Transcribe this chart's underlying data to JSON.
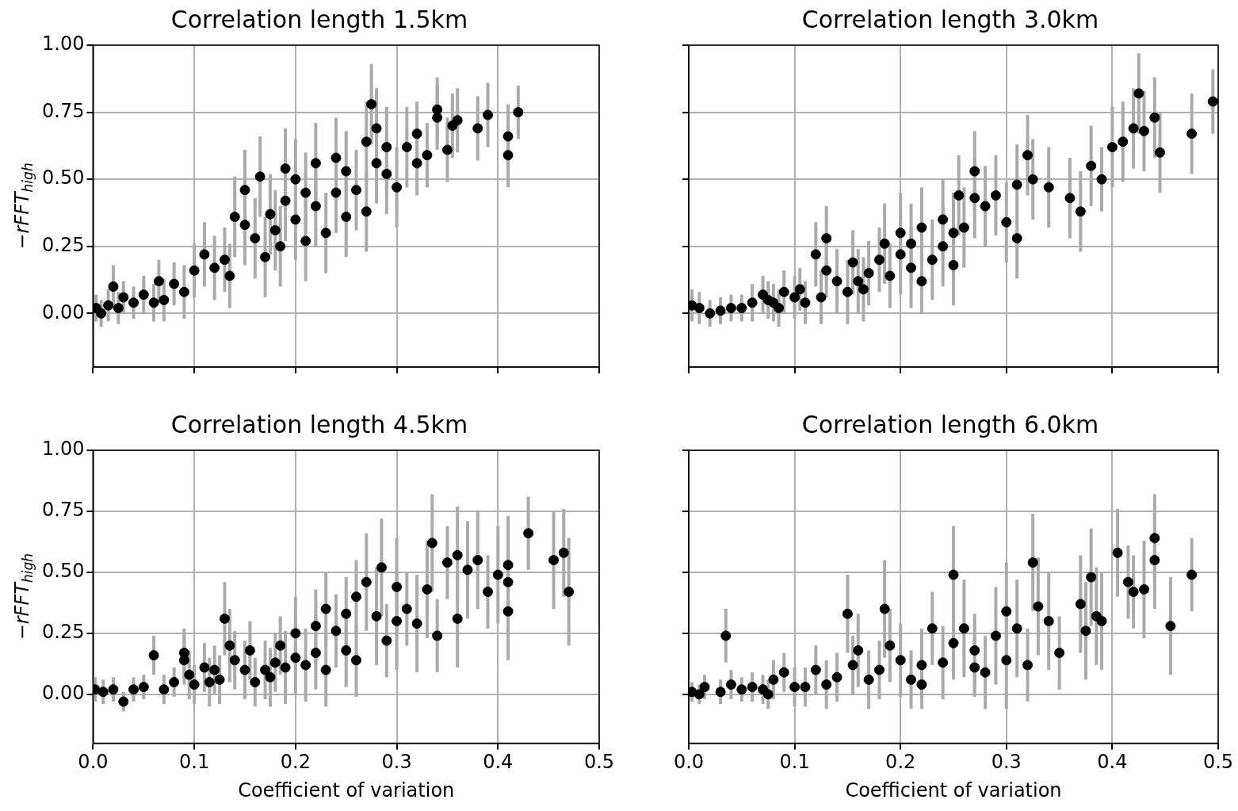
{
  "chart_data": [
    {
      "type": "scatter",
      "title": "Correlation length 1.5km",
      "ylabel": "−rFFT$_{high}$",
      "color": "#000000",
      "marker": "circle",
      "grid": true,
      "tick_labels": "y",
      "xlim": [
        0,
        0.5
      ],
      "ylim": [
        -0.2,
        1.0
      ],
      "xticks": [
        0,
        0.1,
        0.2,
        0.3,
        0.4,
        0.5
      ],
      "yticks": [
        {
          "value": 0,
          "label": "0.00"
        },
        {
          "value": 0.25,
          "label": "0.25"
        },
        {
          "value": 0.5,
          "label": "0.50"
        },
        {
          "value": 0.75,
          "label": "0.75"
        },
        {
          "value": 1,
          "label": "1.00"
        }
      ],
      "x": [
        0.003,
        0.008,
        0.015,
        0.02,
        0.025,
        0.03,
        0.04,
        0.05,
        0.06,
        0.065,
        0.07,
        0.08,
        0.09,
        0.1,
        0.11,
        0.12,
        0.13,
        0.135,
        0.14,
        0.15,
        0.15,
        0.16,
        0.165,
        0.17,
        0.175,
        0.18,
        0.185,
        0.19,
        0.19,
        0.2,
        0.2,
        0.21,
        0.21,
        0.22,
        0.22,
        0.23,
        0.24,
        0.24,
        0.25,
        0.25,
        0.26,
        0.27,
        0.27,
        0.28,
        0.28,
        0.29,
        0.29,
        0.3,
        0.31,
        0.32,
        0.32,
        0.33,
        0.34,
        0.35,
        0.355,
        0.36,
        0.38,
        0.39,
        0.41,
        0.41,
        0.42,
        0.275,
        0.34
      ],
      "values": [
        0.02,
        0.0,
        0.03,
        0.1,
        0.02,
        0.06,
        0.04,
        0.07,
        0.04,
        0.12,
        0.05,
        0.11,
        0.08,
        0.16,
        0.22,
        0.17,
        0.2,
        0.14,
        0.36,
        0.33,
        0.46,
        0.28,
        0.51,
        0.21,
        0.37,
        0.31,
        0.25,
        0.42,
        0.54,
        0.35,
        0.5,
        0.27,
        0.45,
        0.56,
        0.4,
        0.3,
        0.58,
        0.45,
        0.36,
        0.53,
        0.46,
        0.64,
        0.38,
        0.56,
        0.69,
        0.52,
        0.62,
        0.47,
        0.62,
        0.56,
        0.67,
        0.59,
        0.73,
        0.61,
        0.7,
        0.72,
        0.69,
        0.74,
        0.66,
        0.59,
        0.75,
        0.78,
        0.76
      ],
      "errors": [
        0.05,
        0.05,
        0.06,
        0.08,
        0.06,
        0.06,
        0.06,
        0.07,
        0.07,
        0.08,
        0.08,
        0.08,
        0.1,
        0.1,
        0.12,
        0.12,
        0.12,
        0.12,
        0.15,
        0.15,
        0.15,
        0.15,
        0.15,
        0.15,
        0.15,
        0.15,
        0.15,
        0.15,
        0.15,
        0.15,
        0.15,
        0.15,
        0.15,
        0.15,
        0.15,
        0.15,
        0.15,
        0.15,
        0.15,
        0.15,
        0.15,
        0.15,
        0.15,
        0.15,
        0.15,
        0.15,
        0.15,
        0.15,
        0.15,
        0.12,
        0.12,
        0.12,
        0.12,
        0.12,
        0.12,
        0.12,
        0.12,
        0.12,
        0.12,
        0.12,
        0.1,
        0.15,
        0.12
      ]
    },
    {
      "type": "scatter",
      "title": "Correlation length 3.0km",
      "color": "#000000",
      "marker": "circle",
      "grid": true,
      "tick_labels": false,
      "xlim": [
        0,
        0.5
      ],
      "ylim": [
        -0.2,
        1.0
      ],
      "xticks": [
        0,
        0.1,
        0.2,
        0.3,
        0.4,
        0.5
      ],
      "yticks": [
        0,
        0.25,
        0.5,
        0.75,
        1
      ],
      "x": [
        0.003,
        0.01,
        0.02,
        0.03,
        0.04,
        0.05,
        0.06,
        0.07,
        0.075,
        0.08,
        0.085,
        0.09,
        0.1,
        0.105,
        0.11,
        0.12,
        0.125,
        0.13,
        0.13,
        0.14,
        0.15,
        0.155,
        0.16,
        0.165,
        0.17,
        0.18,
        0.185,
        0.19,
        0.2,
        0.2,
        0.21,
        0.21,
        0.22,
        0.22,
        0.23,
        0.24,
        0.24,
        0.25,
        0.25,
        0.255,
        0.26,
        0.27,
        0.27,
        0.28,
        0.29,
        0.3,
        0.31,
        0.31,
        0.32,
        0.325,
        0.34,
        0.36,
        0.37,
        0.38,
        0.39,
        0.4,
        0.41,
        0.42,
        0.425,
        0.43,
        0.44,
        0.445,
        0.475,
        0.495
      ],
      "values": [
        0.03,
        0.02,
        0.0,
        0.01,
        0.02,
        0.02,
        0.04,
        0.07,
        0.05,
        0.04,
        0.02,
        0.08,
        0.06,
        0.09,
        0.04,
        0.22,
        0.06,
        0.28,
        0.16,
        0.12,
        0.08,
        0.19,
        0.12,
        0.09,
        0.15,
        0.2,
        0.26,
        0.14,
        0.22,
        0.3,
        0.17,
        0.26,
        0.32,
        0.12,
        0.2,
        0.35,
        0.25,
        0.3,
        0.18,
        0.44,
        0.32,
        0.53,
        0.43,
        0.4,
        0.44,
        0.34,
        0.48,
        0.28,
        0.59,
        0.5,
        0.47,
        0.43,
        0.38,
        0.55,
        0.5,
        0.62,
        0.64,
        0.69,
        0.82,
        0.68,
        0.73,
        0.6,
        0.67,
        0.79
      ],
      "errors": [
        0.06,
        0.06,
        0.05,
        0.05,
        0.05,
        0.05,
        0.07,
        0.07,
        0.07,
        0.07,
        0.07,
        0.08,
        0.08,
        0.08,
        0.08,
        0.12,
        0.1,
        0.12,
        0.1,
        0.12,
        0.12,
        0.12,
        0.12,
        0.12,
        0.12,
        0.12,
        0.15,
        0.12,
        0.15,
        0.15,
        0.15,
        0.15,
        0.15,
        0.12,
        0.15,
        0.15,
        0.15,
        0.15,
        0.15,
        0.15,
        0.15,
        0.15,
        0.15,
        0.15,
        0.15,
        0.15,
        0.15,
        0.15,
        0.15,
        0.15,
        0.15,
        0.15,
        0.15,
        0.15,
        0.12,
        0.15,
        0.15,
        0.15,
        0.15,
        0.15,
        0.15,
        0.15,
        0.15,
        0.12
      ]
    },
    {
      "type": "scatter",
      "title": "Correlation length 4.5km",
      "xlabel": "Coefficient of variation",
      "ylabel": "−rFFT$_{high}$",
      "color": "#000000",
      "marker": "circle",
      "grid": true,
      "xlim": [
        0,
        0.5
      ],
      "ylim": [
        -0.2,
        1.0
      ],
      "xticks": [
        {
          "value": 0,
          "label": "0.0"
        },
        {
          "value": 0.1,
          "label": "0.1"
        },
        {
          "value": 0.2,
          "label": "0.2"
        },
        {
          "value": 0.3,
          "label": "0.3"
        },
        {
          "value": 0.4,
          "label": "0.4"
        },
        {
          "value": 0.5,
          "label": "0.5"
        }
      ],
      "yticks": [
        {
          "value": 0,
          "label": "0.00"
        },
        {
          "value": 0.25,
          "label": "0.25"
        },
        {
          "value": 0.5,
          "label": "0.50"
        },
        {
          "value": 0.75,
          "label": "0.75"
        },
        {
          "value": 1,
          "label": "1.00"
        }
      ],
      "x": [
        0.002,
        0.01,
        0.02,
        0.03,
        0.04,
        0.05,
        0.06,
        0.07,
        0.08,
        0.09,
        0.09,
        0.095,
        0.1,
        0.11,
        0.115,
        0.12,
        0.125,
        0.13,
        0.135,
        0.14,
        0.15,
        0.155,
        0.16,
        0.17,
        0.175,
        0.18,
        0.185,
        0.19,
        0.2,
        0.2,
        0.21,
        0.22,
        0.22,
        0.23,
        0.23,
        0.24,
        0.25,
        0.25,
        0.26,
        0.26,
        0.27,
        0.28,
        0.285,
        0.29,
        0.3,
        0.3,
        0.31,
        0.32,
        0.33,
        0.34,
        0.35,
        0.36,
        0.37,
        0.38,
        0.39,
        0.4,
        0.41,
        0.41,
        0.43,
        0.455,
        0.465,
        0.47,
        0.335,
        0.36,
        0.41
      ],
      "values": [
        0.02,
        0.01,
        0.02,
        -0.03,
        0.02,
        0.03,
        0.16,
        0.02,
        0.05,
        0.14,
        0.17,
        0.08,
        0.04,
        0.11,
        0.05,
        0.1,
        0.06,
        0.31,
        0.2,
        0.14,
        0.1,
        0.18,
        0.05,
        0.1,
        0.07,
        0.13,
        0.2,
        0.11,
        0.25,
        0.15,
        0.12,
        0.28,
        0.17,
        0.35,
        0.1,
        0.26,
        0.18,
        0.33,
        0.4,
        0.14,
        0.46,
        0.32,
        0.52,
        0.22,
        0.44,
        0.3,
        0.35,
        0.29,
        0.43,
        0.24,
        0.54,
        0.31,
        0.51,
        0.55,
        0.42,
        0.49,
        0.46,
        0.34,
        0.66,
        0.55,
        0.58,
        0.42,
        0.62,
        0.57,
        0.53
      ],
      "errors": [
        0.05,
        0.05,
        0.05,
        0.04,
        0.05,
        0.05,
        0.08,
        0.06,
        0.06,
        0.1,
        0.1,
        0.1,
        0.08,
        0.1,
        0.1,
        0.1,
        0.1,
        0.15,
        0.15,
        0.12,
        0.12,
        0.12,
        0.1,
        0.12,
        0.12,
        0.12,
        0.12,
        0.15,
        0.15,
        0.15,
        0.15,
        0.15,
        0.15,
        0.15,
        0.15,
        0.15,
        0.15,
        0.15,
        0.15,
        0.15,
        0.2,
        0.2,
        0.2,
        0.15,
        0.2,
        0.2,
        0.15,
        0.2,
        0.2,
        0.15,
        0.15,
        0.2,
        0.2,
        0.2,
        0.15,
        0.2,
        0.2,
        0.2,
        0.15,
        0.2,
        0.18,
        0.22,
        0.2,
        0.2,
        0.2
      ]
    },
    {
      "type": "scatter",
      "title": "Correlation length 6.0km",
      "xlabel": "Coefficient of variation",
      "color": "#000000",
      "marker": "circle",
      "grid": true,
      "tick_labels": "x",
      "xlim": [
        0,
        0.5
      ],
      "ylim": [
        -0.2,
        1.0
      ],
      "xticks": [
        {
          "value": 0,
          "label": "0.0"
        },
        {
          "value": 0.1,
          "label": "0.1"
        },
        {
          "value": 0.2,
          "label": "0.2"
        },
        {
          "value": 0.3,
          "label": "0.3"
        },
        {
          "value": 0.4,
          "label": "0.4"
        },
        {
          "value": 0.5,
          "label": "0.5"
        }
      ],
      "yticks": [
        0,
        0.25,
        0.5,
        0.75,
        1
      ],
      "x": [
        0.003,
        0.01,
        0.015,
        0.03,
        0.035,
        0.04,
        0.05,
        0.06,
        0.07,
        0.075,
        0.08,
        0.09,
        0.1,
        0.11,
        0.12,
        0.13,
        0.14,
        0.15,
        0.155,
        0.16,
        0.17,
        0.18,
        0.185,
        0.19,
        0.2,
        0.21,
        0.22,
        0.23,
        0.24,
        0.25,
        0.25,
        0.26,
        0.27,
        0.28,
        0.29,
        0.3,
        0.3,
        0.31,
        0.32,
        0.325,
        0.33,
        0.34,
        0.35,
        0.37,
        0.375,
        0.38,
        0.385,
        0.39,
        0.405,
        0.415,
        0.42,
        0.43,
        0.44,
        0.44,
        0.455,
        0.475,
        0.27,
        0.22
      ],
      "values": [
        0.01,
        0.0,
        0.03,
        0.01,
        0.24,
        0.04,
        0.02,
        0.03,
        0.02,
        0.0,
        0.06,
        0.09,
        0.03,
        0.03,
        0.1,
        0.04,
        0.07,
        0.33,
        0.12,
        0.18,
        0.06,
        0.1,
        0.35,
        0.2,
        0.14,
        0.06,
        0.12,
        0.27,
        0.13,
        0.49,
        0.21,
        0.27,
        0.18,
        0.09,
        0.24,
        0.34,
        0.14,
        0.27,
        0.12,
        0.54,
        0.36,
        0.3,
        0.17,
        0.37,
        0.26,
        0.48,
        0.32,
        0.3,
        0.58,
        0.46,
        0.42,
        0.43,
        0.64,
        0.55,
        0.28,
        0.49,
        0.11,
        0.04
      ],
      "errors": [
        0.04,
        0.04,
        0.05,
        0.05,
        0.11,
        0.06,
        0.05,
        0.06,
        0.06,
        0.06,
        0.08,
        0.08,
        0.08,
        0.08,
        0.1,
        0.1,
        0.1,
        0.16,
        0.12,
        0.15,
        0.12,
        0.12,
        0.2,
        0.15,
        0.15,
        0.12,
        0.15,
        0.15,
        0.15,
        0.2,
        0.15,
        0.2,
        0.15,
        0.15,
        0.2,
        0.2,
        0.2,
        0.2,
        0.15,
        0.2,
        0.2,
        0.2,
        0.15,
        0.2,
        0.2,
        0.2,
        0.2,
        0.2,
        0.18,
        0.15,
        0.15,
        0.2,
        0.18,
        0.2,
        0.2,
        0.15,
        0.12,
        0.1
      ]
    }
  ]
}
